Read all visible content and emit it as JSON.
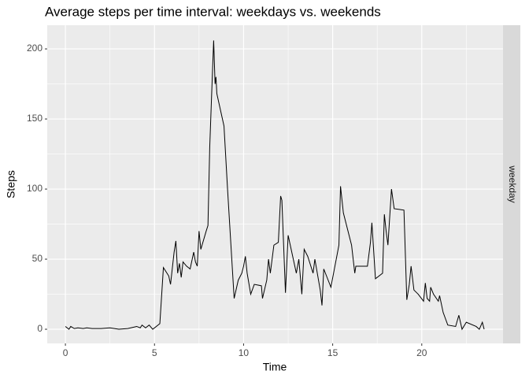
{
  "chart_data": {
    "type": "line",
    "title": "Average steps per time interval: weekdays vs. weekends",
    "x_label": "Time",
    "y_label": "Steps",
    "facet": "weekday",
    "x": [
      0,
      0.2,
      0.3,
      0.5,
      0.7,
      1,
      1.2,
      1.5,
      2,
      2.5,
      3,
      3.5,
      4,
      4.2,
      4.3,
      4.5,
      4.7,
      4.9,
      5.1,
      5.3,
      5.5,
      5.8,
      5.9,
      6.1,
      6.2,
      6.3,
      6.4,
      6.5,
      6.6,
      6.8,
      7,
      7.2,
      7.3,
      7.4,
      7.5,
      7.6,
      7.9,
      8.0,
      8.1,
      8.2,
      8.32,
      8.4,
      8.45,
      8.5,
      8.9,
      9.1,
      9.47,
      9.7,
      9.9,
      10.0,
      10.1,
      10.2,
      10.4,
      10.6,
      11.0,
      11.06,
      11.3,
      11.4,
      11.5,
      11.7,
      11.95,
      12.08,
      12.15,
      12.35,
      12.5,
      12.96,
      13.1,
      13.27,
      13.4,
      13.6,
      13.9,
      14.0,
      14.3,
      14.4,
      14.5,
      14.9,
      15.2,
      15.35,
      15.44,
      15.6,
      16.06,
      16.24,
      16.3,
      16.95,
      17.12,
      17.2,
      17.4,
      17.8,
      17.9,
      18.0,
      18.1,
      18.3,
      18.45,
      19.0,
      19.16,
      19.3,
      19.4,
      19.56,
      19.8,
      20.1,
      20.2,
      20.3,
      20.44,
      20.5,
      20.66,
      20.93,
      21.0,
      21.2,
      21.46,
      21.9,
      22.08,
      22.26,
      22.5,
      23.05,
      23.23,
      23.4,
      23.5
    ],
    "series": [
      {
        "color": "#000000",
        "values": [
          2,
          0,
          2,
          0.5,
          1,
          0.5,
          1,
          0.5,
          0.5,
          1,
          0,
          0.5,
          2,
          1,
          3,
          1,
          3,
          0,
          2,
          4,
          44,
          38,
          32,
          55,
          63,
          40,
          47,
          37,
          48,
          45,
          43,
          55,
          48,
          45,
          70,
          57,
          70,
          74,
          130,
          165,
          206,
          175,
          180,
          168,
          145,
          100,
          22,
          35,
          40,
          45,
          52,
          40,
          25,
          32,
          31,
          22,
          35,
          50,
          40,
          60,
          62,
          95,
          92,
          26,
          67,
          40,
          50,
          25,
          57,
          52,
          40,
          50,
          28,
          17,
          43,
          30,
          50,
          60,
          102,
          83,
          60,
          40,
          45,
          45,
          62,
          76,
          36,
          40,
          82,
          70,
          60,
          100,
          86,
          85,
          21,
          32,
          45,
          28,
          25,
          20,
          33,
          22,
          20,
          30,
          25,
          20,
          24,
          12,
          3,
          2,
          10,
          0,
          5,
          2,
          0,
          5,
          0
        ]
      }
    ],
    "xlim": [
      -1.02,
      24.56
    ],
    "xticks": [
      0,
      5,
      10,
      15,
      20
    ],
    "ylim": [
      -10.1,
      216.9
    ],
    "yticks": [
      0,
      50,
      100,
      150,
      200
    ],
    "grid": true
  }
}
